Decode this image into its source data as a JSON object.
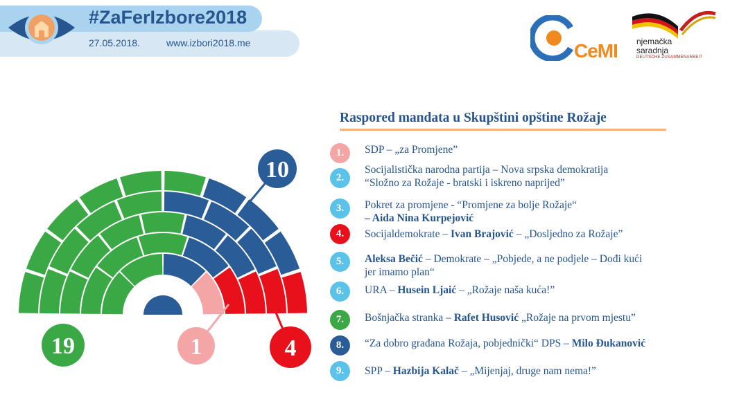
{
  "header": {
    "hashtag": "#ZaFerIzbore2018",
    "date": "27.05.2018.",
    "website": "www.izbori2018.me",
    "org_logo": "CeMI",
    "partner_line1": "njemačka",
    "partner_line2": "saradnja",
    "partner_line3": "DEUTSCHE ZUSAMMENARBEIT"
  },
  "chart_data": {
    "type": "parliament",
    "title": "Raspored mandata u Skupštini opštine Rožaje",
    "total_seats": 34,
    "series": [
      {
        "name": "Bošnjačka stranka",
        "seats": 19,
        "color": "#3aa845"
      },
      {
        "name": "DPS",
        "seats": 10,
        "color": "#2a5d97"
      },
      {
        "name": "SDP",
        "seats": 1,
        "color": "#f4a6a6"
      },
      {
        "name": "Socijaldemokrate",
        "seats": 4,
        "color": "#e8101a"
      }
    ],
    "labels": [
      "10",
      "19",
      "1",
      "4"
    ]
  },
  "legend": [
    {
      "num": "1.",
      "color": "#f4a6a6",
      "parts": [
        {
          "t": "SDP – „za Promjene”",
          "b": false
        }
      ]
    },
    {
      "num": "2.",
      "color": "#5bc2ea",
      "parts": [
        {
          "t": "Socijalistička narodna partija – Nova srpska demokratija",
          "b": false
        },
        {
          "t": "“Složno za Rožaje - bratski i iskreno naprijed”",
          "b": false,
          "br": true
        }
      ]
    },
    {
      "num": "3.",
      "color": "#5bc2ea",
      "parts": [
        {
          "t": "Pokret za promjene - “Promjene za bolje Rožaje“",
          "b": false
        },
        {
          "t": "– Aida Nina Kurpejović",
          "b": true,
          "br": true
        }
      ]
    },
    {
      "num": "4.",
      "color": "#e8101a",
      "parts": [
        {
          "t": "Socijaldemokrate – ",
          "b": false
        },
        {
          "t": "Ivan Brajović",
          "b": true
        },
        {
          "t": " – „Dosljedno za Rožaje”",
          "b": false
        }
      ]
    },
    {
      "num": "5.",
      "color": "#5bc2ea",
      "parts": [
        {
          "t": "Aleksa Bečić",
          "b": true
        },
        {
          "t": " – Demokrate – „Pobjede, a ne podjele – Dođi kući",
          "b": false
        },
        {
          "t": "jer imamo plan“",
          "b": false,
          "br": true
        }
      ]
    },
    {
      "num": "6.",
      "color": "#5bc2ea",
      "parts": [
        {
          "t": "URA – ",
          "b": false
        },
        {
          "t": "Husein Ljaić",
          "b": true
        },
        {
          "t": " – „Rožaje naša kuća!”",
          "b": false
        }
      ]
    },
    {
      "num": "7.",
      "color": "#3aa845",
      "parts": [
        {
          "t": "Bošnjačka stranka – ",
          "b": false
        },
        {
          "t": "Rafet Husović",
          "b": true
        },
        {
          "t": " „Rožaje na prvom mjestu”",
          "b": false
        }
      ]
    },
    {
      "num": "8.",
      "color": "#2a5d97",
      "parts": [
        {
          "t": "“Za dobro građana Rožaja, pobjednički“ DPS – ",
          "b": false
        },
        {
          "t": "Milo Đukanović",
          "b": true
        }
      ]
    },
    {
      "num": "9.",
      "color": "#5bc2ea",
      "parts": [
        {
          "t": "SPP – ",
          "b": false
        },
        {
          "t": "Hazbija Kalač",
          "b": true
        },
        {
          "t": " – „Mijenjaj, druge nam nema!”",
          "b": false
        }
      ]
    }
  ]
}
